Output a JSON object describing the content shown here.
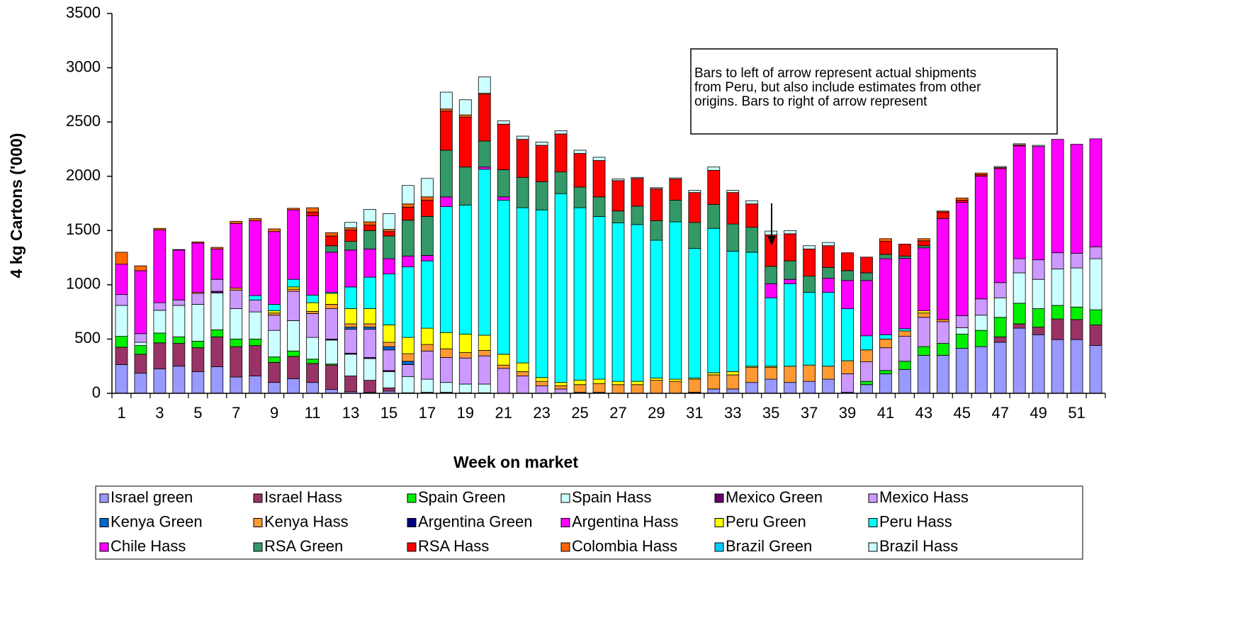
{
  "chart_data": {
    "type": "stacked_bar",
    "y_label": "4 kg Cartons ('000)",
    "x_label": "Week on market",
    "annotation": [
      "Bars to left of arrow represent actual shipments",
      "from Peru, but also include estimates from other",
      "origins. Bars to right of arrow represent"
    ],
    "categories": [
      1,
      null,
      3,
      null,
      5,
      null,
      7,
      null,
      9,
      null,
      11,
      null,
      13,
      null,
      15,
      null,
      17,
      null,
      19,
      null,
      21,
      null,
      23,
      null,
      25,
      null,
      27,
      null,
      29,
      null,
      31,
      null,
      33,
      null,
      35,
      null,
      37,
      null,
      39,
      null,
      41,
      null,
      43,
      null,
      45,
      null,
      47,
      null,
      49,
      null,
      51,
      null
    ],
    "ylim": [
      0,
      3500
    ],
    "yticks": [
      0,
      500,
      1000,
      1500,
      2000,
      2500,
      3000,
      3500
    ],
    "legend": "bottom",
    "series": [
      {
        "name": "Israel green",
        "color": "#9999FF",
        "values": [
          265,
          185,
          225,
          250,
          200,
          245,
          150,
          160,
          100,
          135,
          100,
          35,
          15,
          10,
          20,
          5,
          10,
          10,
          5,
          5,
          0,
          0,
          0,
          0,
          0,
          0,
          0,
          0,
          0,
          0,
          0,
          40,
          40,
          100,
          130,
          100,
          110,
          130,
          10,
          80,
          180,
          220,
          350,
          350,
          415,
          430,
          470,
          600,
          540,
          495,
          495,
          440
        ]
      },
      {
        "name": "Israel Hass",
        "color": "#993366",
        "values": [
          160,
          175,
          240,
          210,
          220,
          275,
          280,
          280,
          185,
          205,
          175,
          225,
          145,
          110,
          30,
          0,
          0,
          0,
          0,
          0,
          0,
          0,
          0,
          0,
          0,
          0,
          0,
          0,
          0,
          0,
          10,
          0,
          0,
          0,
          0,
          0,
          0,
          0,
          0,
          0,
          0,
          0,
          0,
          0,
          0,
          0,
          50,
          40,
          70,
          190,
          185,
          190
        ]
      },
      {
        "name": "Spain Green",
        "color": "#00EE00",
        "values": [
          100,
          80,
          90,
          60,
          60,
          65,
          70,
          60,
          50,
          50,
          40,
          10,
          0,
          0,
          0,
          0,
          0,
          0,
          0,
          0,
          0,
          0,
          0,
          0,
          0,
          0,
          0,
          0,
          0,
          0,
          0,
          0,
          0,
          0,
          0,
          0,
          0,
          0,
          0,
          30,
          30,
          75,
          80,
          110,
          130,
          150,
          180,
          190,
          170,
          125,
          115,
          140
        ]
      },
      {
        "name": "Spain Hass",
        "color": "#CCFFFF",
        "values": [
          285,
          30,
          210,
          290,
          340,
          340,
          280,
          250,
          245,
          280,
          200,
          220,
          200,
          200,
          150,
          150,
          120,
          90,
          80,
          80,
          0,
          0,
          0,
          0,
          0,
          0,
          0,
          0,
          0,
          0,
          0,
          0,
          0,
          0,
          0,
          0,
          0,
          0,
          0,
          0,
          0,
          0,
          0,
          0,
          60,
          140,
          180,
          280,
          270,
          335,
          360,
          470
        ]
      },
      {
        "name": "Mexico Green",
        "color": "#660066",
        "values": [
          0,
          0,
          0,
          0,
          0,
          15,
          0,
          0,
          0,
          0,
          0,
          10,
          10,
          10,
          10,
          0,
          0,
          0,
          0,
          0,
          0,
          0,
          0,
          0,
          0,
          0,
          0,
          0,
          0,
          0,
          0,
          0,
          0,
          0,
          0,
          0,
          0,
          0,
          0,
          0,
          0,
          0,
          0,
          0,
          0,
          0,
          0,
          0,
          0,
          0,
          0,
          0
        ]
      },
      {
        "name": "Mexico Hass",
        "color": "#CC99FF",
        "values": [
          100,
          80,
          70,
          50,
          100,
          110,
          170,
          110,
          140,
          270,
          220,
          280,
          220,
          260,
          190,
          110,
          260,
          230,
          240,
          260,
          230,
          160,
          70,
          40,
          10,
          10,
          0,
          0,
          0,
          0,
          0,
          0,
          0,
          0,
          0,
          0,
          0,
          0,
          170,
          180,
          210,
          230,
          270,
          200,
          110,
          150,
          140,
          130,
          180,
          150,
          135,
          110
        ]
      },
      {
        "name": "Kenya Green",
        "color": "#0066CC",
        "values": [
          0,
          0,
          0,
          0,
          0,
          0,
          0,
          0,
          0,
          0,
          0,
          0,
          20,
          20,
          30,
          30,
          0,
          0,
          0,
          0,
          0,
          0,
          0,
          0,
          0,
          0,
          0,
          0,
          0,
          0,
          0,
          0,
          0,
          0,
          0,
          0,
          0,
          0,
          0,
          0,
          0,
          0,
          0,
          0,
          0,
          0,
          0,
          0,
          0,
          0,
          0,
          0
        ]
      },
      {
        "name": "Kenya Hass",
        "color": "#FF9933",
        "values": [
          0,
          0,
          0,
          0,
          10,
          0,
          20,
          0,
          20,
          20,
          20,
          40,
          30,
          30,
          40,
          70,
          60,
          80,
          50,
          50,
          30,
          40,
          40,
          30,
          70,
          80,
          80,
          80,
          120,
          110,
          120,
          130,
          130,
          140,
          110,
          150,
          150,
          120,
          120,
          110,
          80,
          50,
          40,
          20,
          0,
          0,
          0,
          0,
          0,
          0,
          0,
          0
        ]
      },
      {
        "name": "Argentina Green",
        "color": "#000080",
        "values": [
          0,
          0,
          0,
          0,
          0,
          0,
          0,
          0,
          0,
          0,
          0,
          0,
          0,
          0,
          0,
          0,
          0,
          0,
          0,
          0,
          0,
          0,
          0,
          0,
          0,
          0,
          0,
          0,
          0,
          0,
          0,
          0,
          0,
          0,
          0,
          0,
          0,
          0,
          0,
          0,
          0,
          0,
          0,
          0,
          0,
          0,
          0,
          0,
          0,
          0,
          0,
          0
        ]
      },
      {
        "name": "Argentina Hass",
        "color": "#FF00FF",
        "values": [
          0,
          0,
          0,
          0,
          0,
          0,
          0,
          0,
          0,
          0,
          0,
          0,
          0,
          0,
          0,
          0,
          0,
          0,
          0,
          0,
          0,
          0,
          0,
          0,
          0,
          0,
          0,
          0,
          0,
          0,
          0,
          0,
          0,
          0,
          0,
          0,
          0,
          0,
          0,
          0,
          0,
          0,
          0,
          0,
          0,
          0,
          0,
          0,
          0,
          0,
          0,
          0
        ]
      },
      {
        "name": "Peru Green",
        "color": "#FFFF00",
        "values": [
          0,
          0,
          0,
          0,
          0,
          0,
          0,
          0,
          20,
          20,
          80,
          100,
          140,
          140,
          160,
          150,
          150,
          150,
          170,
          140,
          100,
          80,
          35,
          30,
          40,
          40,
          30,
          30,
          20,
          20,
          10,
          20,
          30,
          10,
          10,
          0,
          0,
          0,
          0,
          0,
          0,
          0,
          20,
          0,
          0,
          0,
          0,
          0,
          0,
          0,
          0,
          0
        ]
      },
      {
        "name": "Peru Hass",
        "color": "#00FFFF",
        "values": [
          0,
          0,
          0,
          0,
          0,
          0,
          0,
          40,
          60,
          70,
          70,
          10,
          200,
          290,
          470,
          650,
          620,
          1160,
          1190,
          1530,
          1420,
          1430,
          1545,
          1740,
          1590,
          1500,
          1460,
          1445,
          1270,
          1450,
          1195,
          1330,
          1110,
          1050,
          630,
          760,
          670,
          680,
          480,
          130,
          40,
          20,
          0,
          0,
          0,
          0,
          0,
          0,
          0,
          0,
          0,
          0
        ]
      },
      {
        "name": "Chile Hass",
        "color": "#FF00FF",
        "values": [
          280,
          580,
          670,
          460,
          455,
          280,
          595,
          690,
          670,
          640,
          730,
          370,
          340,
          260,
          140,
          100,
          50,
          90,
          0,
          20,
          30,
          0,
          0,
          0,
          0,
          0,
          0,
          0,
          0,
          0,
          0,
          0,
          0,
          0,
          130,
          40,
          0,
          130,
          260,
          510,
          700,
          650,
          580,
          930,
          1045,
          1130,
          1050,
          1040,
          1045,
          1045,
          1005,
          995
        ]
      },
      {
        "name": "RSA Green",
        "color": "#339966",
        "values": [
          0,
          0,
          0,
          0,
          0,
          0,
          0,
          0,
          0,
          0,
          0,
          60,
          80,
          170,
          210,
          330,
          360,
          430,
          350,
          240,
          250,
          280,
          260,
          200,
          190,
          180,
          110,
          170,
          180,
          200,
          240,
          220,
          250,
          230,
          160,
          170,
          150,
          100,
          90,
          70,
          40,
          20,
          20,
          0,
          0,
          0,
          0,
          0,
          0,
          0,
          0,
          0
        ]
      },
      {
        "name": "RSA Hass",
        "color": "#FF0000",
        "values": [
          0,
          0,
          0,
          0,
          0,
          0,
          0,
          0,
          0,
          0,
          35,
          90,
          105,
          50,
          40,
          120,
          150,
          360,
          460,
          430,
          420,
          350,
          335,
          350,
          310,
          335,
          280,
          255,
          295,
          195,
          275,
          315,
          290,
          215,
          290,
          250,
          250,
          200,
          165,
          145,
          120,
          110,
          45,
          60,
          20,
          15,
          10,
          10,
          0,
          0,
          0,
          0
        ]
      },
      {
        "name": "Colombia Hass",
        "color": "#FF6600",
        "values": [
          110,
          45,
          15,
          5,
          10,
          15,
          20,
          20,
          25,
          15,
          40,
          30,
          20,
          30,
          20,
          30,
          30,
          20,
          20,
          10,
          0,
          0,
          0,
          0,
          0,
          0,
          0,
          0,
          0,
          0,
          0,
          0,
          0,
          0,
          0,
          0,
          0,
          0,
          0,
          0,
          25,
          0,
          20,
          10,
          20,
          15,
          0,
          0,
          0,
          0,
          0,
          0
        ]
      },
      {
        "name": "Brazil Green",
        "color": "#00CCFF",
        "values": [
          0,
          0,
          0,
          0,
          0,
          0,
          0,
          0,
          0,
          0,
          0,
          0,
          0,
          0,
          0,
          0,
          0,
          0,
          0,
          0,
          0,
          0,
          0,
          0,
          0,
          0,
          0,
          0,
          0,
          0,
          0,
          0,
          0,
          0,
          0,
          0,
          0,
          0,
          0,
          0,
          0,
          0,
          0,
          0,
          0,
          0,
          0,
          0,
          0,
          0,
          0,
          0
        ]
      },
      {
        "name": "Brazil Hass",
        "color": "#CCFFFF",
        "values": [
          0,
          0,
          0,
          0,
          0,
          0,
          0,
          0,
          0,
          0,
          0,
          0,
          50,
          115,
          145,
          170,
          170,
          155,
          140,
          150,
          30,
          30,
          30,
          30,
          30,
          30,
          15,
          10,
          10,
          10,
          20,
          30,
          20,
          30,
          35,
          30,
          30,
          30,
          0,
          0,
          0,
          0,
          0,
          0,
          0,
          0,
          10,
          10,
          10,
          0,
          0,
          0
        ]
      }
    ]
  }
}
